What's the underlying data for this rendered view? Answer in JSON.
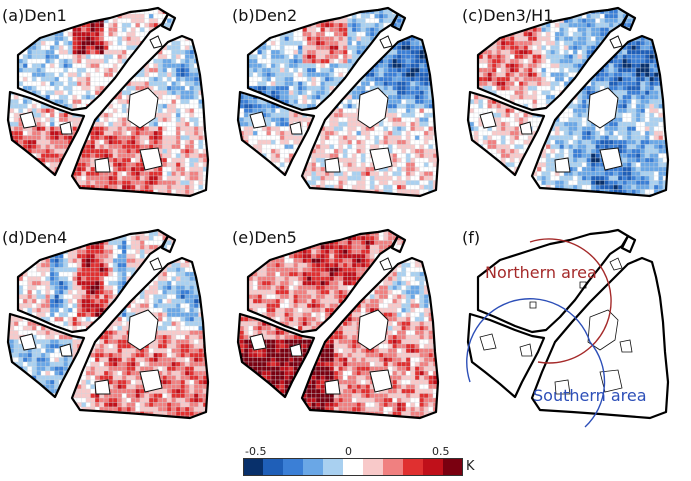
{
  "panels": [
    {
      "label": "(a)Den1",
      "pattern": "den1"
    },
    {
      "label": "(b)Den2",
      "pattern": "den2"
    },
    {
      "label": "(c)Den3/H1",
      "pattern": "den3"
    },
    {
      "label": "(d)Den4",
      "pattern": "den4"
    },
    {
      "label": "(e)Den5",
      "pattern": "den5"
    },
    {
      "label": "(f)",
      "pattern": "outline"
    }
  ],
  "areas": {
    "northern": {
      "label": "Northern area",
      "color": "#a52a2a"
    },
    "southern": {
      "label": "Southern area",
      "color": "#2d4fb8"
    }
  },
  "colorbar": {
    "ticks": [
      "-0.5",
      "0",
      "0.5"
    ],
    "unit": "K",
    "colors": [
      "#08306b",
      "#1f5fb8",
      "#3b7fd6",
      "#6aa7e6",
      "#a9d0f0",
      "#ffffff",
      "#f8c9c9",
      "#f08080",
      "#e03030",
      "#c0101a",
      "#7a0010"
    ],
    "range": [
      -0.5,
      0.5
    ]
  }
}
